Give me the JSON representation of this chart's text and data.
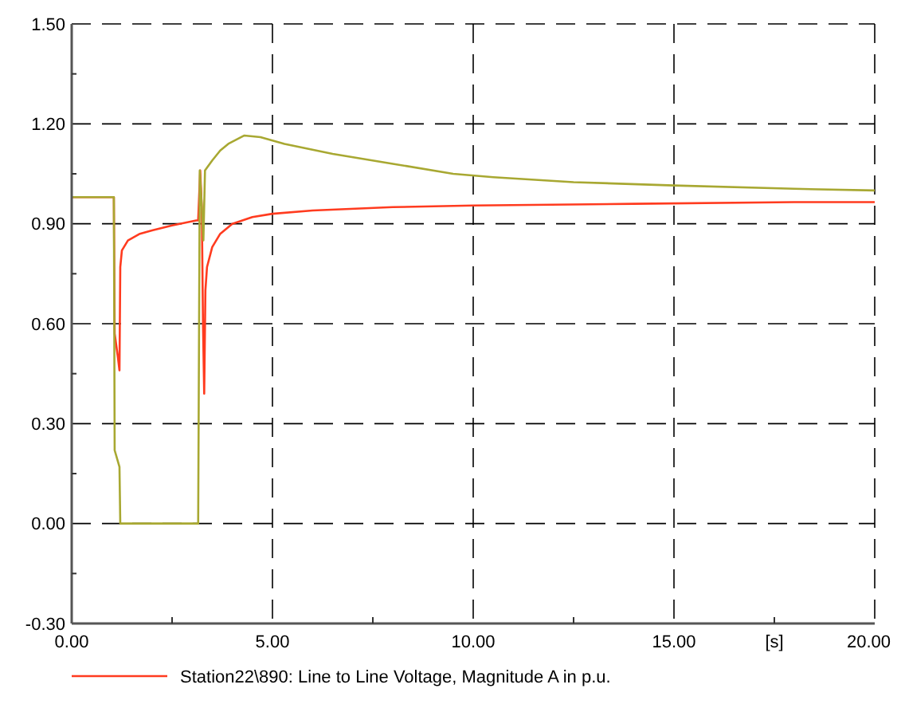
{
  "chart_data": {
    "type": "line",
    "xlabel": "[s]",
    "xlim": [
      0,
      20
    ],
    "xticks": [
      {
        "value": 0,
        "label": "0.00"
      },
      {
        "value": 5,
        "label": "5.00"
      },
      {
        "value": 10,
        "label": "10.00"
      },
      {
        "value": 15,
        "label": "15.00"
      },
      {
        "value": 20,
        "label": "20.00"
      }
    ],
    "ylim": [
      -0.3,
      1.5
    ],
    "yticks": [
      {
        "value": -0.3,
        "label": "-0.30"
      },
      {
        "value": 0,
        "label": "0.00"
      },
      {
        "value": 0.3,
        "label": "0.30"
      },
      {
        "value": 0.6,
        "label": "0.60"
      },
      {
        "value": 0.9,
        "label": "0.90"
      },
      {
        "value": 1.2,
        "label": "1.20"
      },
      {
        "value": 1.5,
        "label": "1.50"
      }
    ],
    "grid": true,
    "legend": "bottom",
    "series": [
      {
        "name": "Station22\\890: Line to Line Voltage, Magnitude A in p.u.",
        "color": "#ff3b1f",
        "x": [
          0,
          1.05,
          1.07,
          1.15,
          1.19,
          1.21,
          1.25,
          1.4,
          1.7,
          2.0,
          2.5,
          3.1,
          3.15,
          3.2,
          3.24,
          3.27,
          3.3,
          3.33,
          3.37,
          3.5,
          3.7,
          4.0,
          4.5,
          5.0,
          6.0,
          8.0,
          10.0,
          14.0,
          18.0,
          20.0
        ],
        "values": [
          0.98,
          0.98,
          0.57,
          0.5,
          0.46,
          0.77,
          0.82,
          0.85,
          0.87,
          0.88,
          0.895,
          0.91,
          0.91,
          1.06,
          0.95,
          0.6,
          0.39,
          0.7,
          0.77,
          0.83,
          0.87,
          0.9,
          0.92,
          0.93,
          0.94,
          0.95,
          0.955,
          0.96,
          0.965,
          0.965
        ]
      },
      {
        "color": "#a8a832",
        "x": [
          0,
          1.05,
          1.07,
          1.19,
          1.21,
          3.15,
          3.19,
          3.24,
          3.28,
          3.32,
          3.5,
          3.7,
          3.9,
          4.3,
          4.7,
          5.3,
          6.5,
          8.0,
          9.5,
          10.5,
          12.5,
          15.0,
          18.0,
          20.0
        ],
        "values": [
          0.98,
          0.98,
          0.22,
          0.17,
          0,
          0,
          1.06,
          0.95,
          0.85,
          1.06,
          1.09,
          1.12,
          1.14,
          1.165,
          1.16,
          1.14,
          1.11,
          1.08,
          1.05,
          1.04,
          1.025,
          1.015,
          1.005,
          1.0
        ]
      }
    ]
  }
}
